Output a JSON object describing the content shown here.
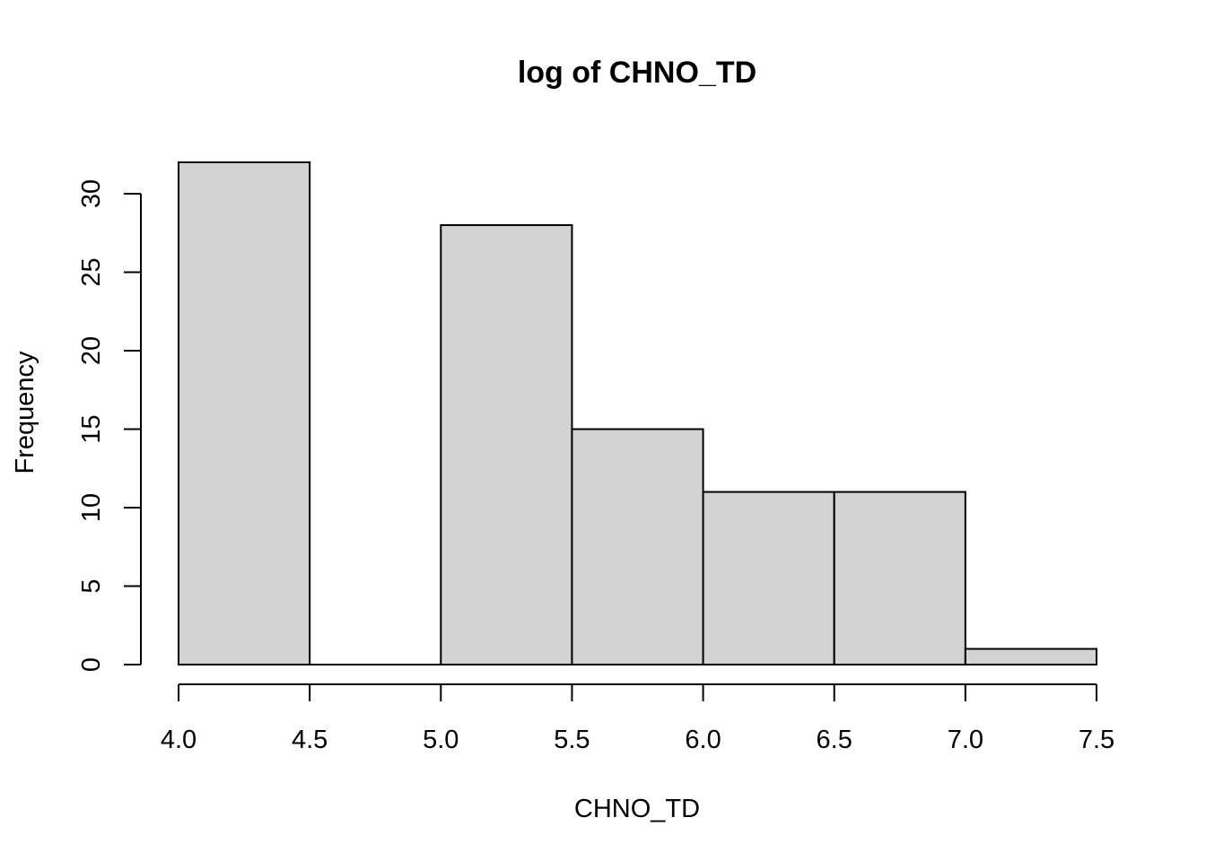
{
  "chart_data": {
    "type": "bar",
    "subtype": "histogram",
    "title": "log of CHNO_TD",
    "xlabel": "CHNO_TD",
    "ylabel": "Frequency",
    "bins": [
      {
        "from": 4.0,
        "to": 4.5,
        "count": 32
      },
      {
        "from": 4.5,
        "to": 5.0,
        "count": 0
      },
      {
        "from": 5.0,
        "to": 5.5,
        "count": 28
      },
      {
        "from": 5.5,
        "to": 6.0,
        "count": 15
      },
      {
        "from": 6.0,
        "to": 6.5,
        "count": 11
      },
      {
        "from": 6.5,
        "to": 7.0,
        "count": 11
      },
      {
        "from": 7.0,
        "to": 7.5,
        "count": 1
      }
    ],
    "xlim": [
      4.0,
      7.5
    ],
    "ylim": [
      0,
      32
    ],
    "x_ticks": [
      "4.0",
      "4.5",
      "5.0",
      "5.5",
      "6.0",
      "6.5",
      "7.0",
      "7.5"
    ],
    "y_ticks": [
      "0",
      "5",
      "10",
      "15",
      "20",
      "25",
      "30"
    ],
    "grid": false,
    "colors": {
      "bar_fill": "#d3d3d3",
      "bar_stroke": "#000000",
      "background": "#ffffff"
    }
  }
}
